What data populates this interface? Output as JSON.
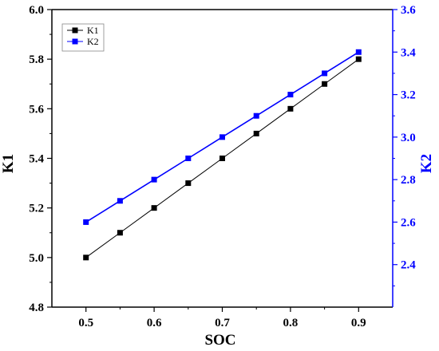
{
  "chart_data": {
    "type": "line",
    "xlabel": "SOC",
    "ylabel": "K1",
    "y2label": "K2",
    "x": [
      0.5,
      0.55,
      0.6,
      0.65,
      0.7,
      0.75,
      0.8,
      0.85,
      0.9
    ],
    "xlim": [
      0.45,
      0.95
    ],
    "xticks": [
      "0.5",
      "0.6",
      "0.7",
      "0.8",
      "0.9"
    ],
    "ylim": [
      4.8,
      6.0
    ],
    "yticks": [
      "4.8",
      "5.0",
      "5.2",
      "5.4",
      "5.6",
      "5.8",
      "6.0"
    ],
    "y2lim": [
      2.2,
      3.6
    ],
    "y2ticks": [
      "2.4",
      "2.6",
      "2.8",
      "3.0",
      "3.2",
      "3.4",
      "3.6"
    ],
    "series": [
      {
        "name": "K1",
        "axis": "left",
        "color": "#000000",
        "marker": "square",
        "values": [
          5.0,
          5.1,
          5.2,
          5.3,
          5.4,
          5.5,
          5.6,
          5.7,
          5.8
        ]
      },
      {
        "name": "K2",
        "axis": "right",
        "color": "#0000ff",
        "marker": "square",
        "values": [
          2.6,
          2.7,
          2.8,
          2.9,
          3.0,
          3.1,
          3.2,
          3.3,
          3.4
        ]
      }
    ],
    "legend": "top-left",
    "grid": false,
    "left_axis_color": "#000000",
    "right_axis_color": "#0000ff"
  }
}
